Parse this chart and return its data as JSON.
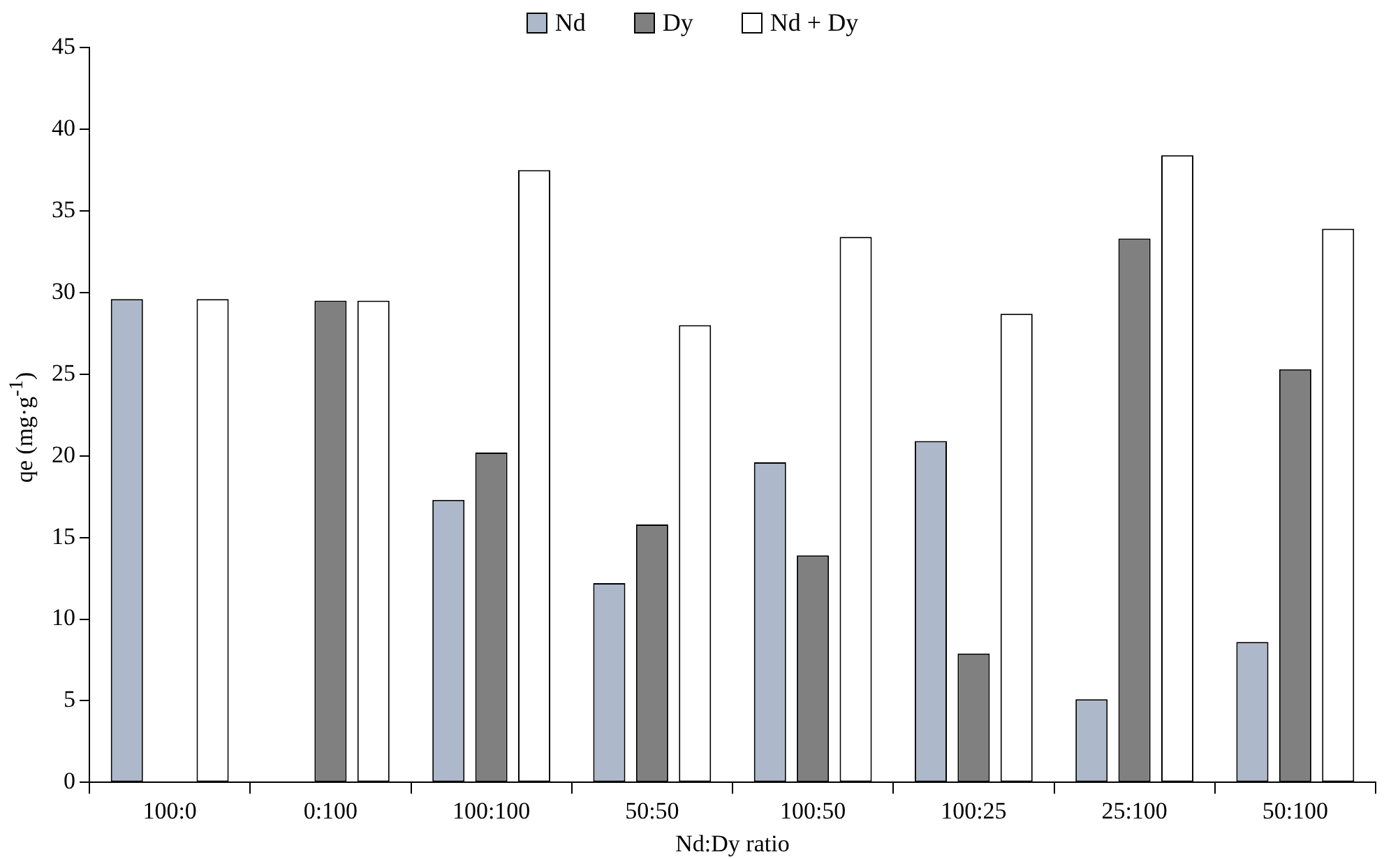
{
  "chart_data": {
    "type": "bar",
    "xlabel": "Nd:Dy ratio",
    "ylabel": "qe (mg·g$^{-1}$)",
    "categories": [
      "100:0",
      "0:100",
      "100:100",
      "50:50",
      "100:50",
      "100:25",
      "25:100",
      "50:100"
    ],
    "series": [
      {
        "name": "Nd",
        "color": "#adb9ca",
        "values": [
          29.6,
          0,
          17.3,
          12.2,
          19.6,
          20.9,
          5.1,
          8.6
        ]
      },
      {
        "name": "Dy",
        "color": "#808080",
        "values": [
          0,
          29.5,
          20.2,
          15.8,
          13.9,
          7.9,
          33.3,
          25.3
        ]
      },
      {
        "name": "Nd + Dy",
        "color": "#ffffff",
        "values": [
          29.6,
          29.5,
          37.5,
          28.0,
          33.4,
          28.7,
          38.4,
          33.9
        ]
      }
    ],
    "ylim": [
      0,
      45
    ],
    "yticks": [
      0,
      5,
      10,
      15,
      20,
      25,
      30,
      35,
      40,
      45
    ],
    "grid": false,
    "legend": "top"
  }
}
